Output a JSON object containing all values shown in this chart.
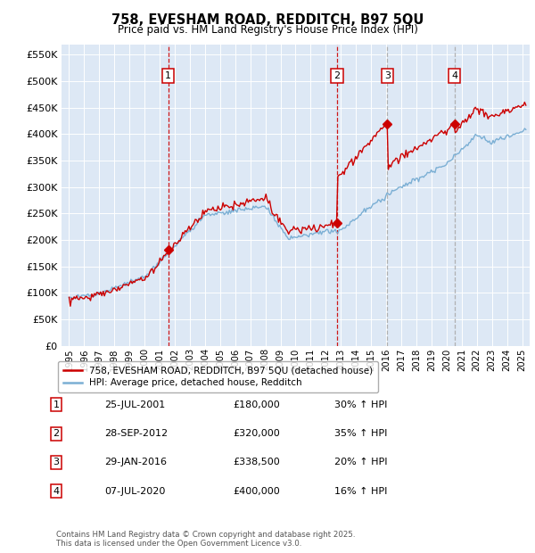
{
  "title": "758, EVESHAM ROAD, REDDITCH, B97 5QU",
  "subtitle": "Price paid vs. HM Land Registry's House Price Index (HPI)",
  "red_label": "758, EVESHAM ROAD, REDDITCH, B97 5QU (detached house)",
  "blue_label": "HPI: Average price, detached house, Redditch",
  "footnote1": "Contains HM Land Registry data © Crown copyright and database right 2025.",
  "footnote2": "This data is licensed under the Open Government Licence v3.0.",
  "transactions": [
    {
      "num": 1,
      "date": "25-JUL-2001",
      "price": 180000,
      "pct": "30%",
      "dir": "↑",
      "ref": "HPI",
      "x_year": 2001.56,
      "vline_color": "#cc0000",
      "vline_style": "dashed"
    },
    {
      "num": 2,
      "date": "28-SEP-2012",
      "price": 320000,
      "pct": "35%",
      "dir": "↑",
      "ref": "HPI",
      "x_year": 2012.75,
      "vline_color": "#cc0000",
      "vline_style": "dashed"
    },
    {
      "num": 3,
      "date": "29-JAN-2016",
      "price": 338500,
      "pct": "20%",
      "dir": "↑",
      "ref": "HPI",
      "x_year": 2016.08,
      "vline_color": "#aaaaaa",
      "vline_style": "dashed"
    },
    {
      "num": 4,
      "date": "07-JUL-2020",
      "price": 400000,
      "pct": "16%",
      "dir": "↑",
      "ref": "HPI",
      "x_year": 2020.52,
      "vline_color": "#aaaaaa",
      "vline_style": "dashed"
    }
  ],
  "xlim": [
    1994.5,
    2025.5
  ],
  "ylim": [
    0,
    570000
  ],
  "yticks": [
    0,
    50000,
    100000,
    150000,
    200000,
    250000,
    300000,
    350000,
    400000,
    450000,
    500000,
    550000
  ],
  "ytick_labels": [
    "£0",
    "£50K",
    "£100K",
    "£150K",
    "£200K",
    "£250K",
    "£300K",
    "£350K",
    "£400K",
    "£450K",
    "£500K",
    "£550K"
  ],
  "bg_color": "#dde8f5",
  "grid_color": "#ffffff",
  "red_color": "#cc0000",
  "blue_color": "#7bafd4"
}
